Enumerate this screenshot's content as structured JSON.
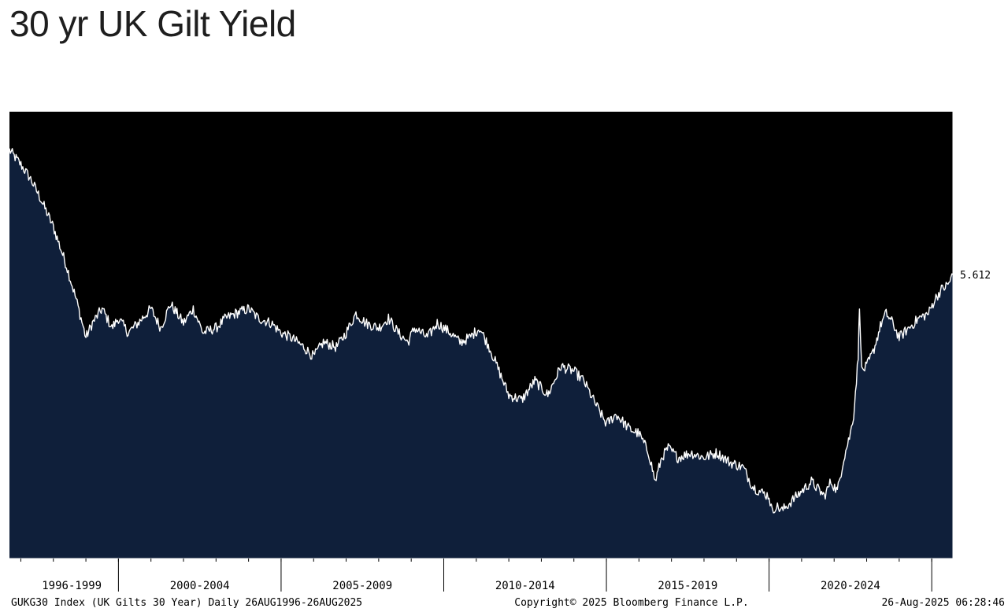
{
  "header": {
    "title": "30 yr UK Gilt Yield"
  },
  "chart_data": {
    "type": "area",
    "title": "30 yr UK Gilt Yield",
    "series_label": "GUKG30 Index (UK Gilts 30 Year)  Daily 26AUG1996-26AUG2025",
    "copyright": "Copyright© 2025 Bloomberg Finance L.P.",
    "timestamp": "26-Aug-2025 06:28:46",
    "x_range": [
      "1996-08-26",
      "2025-08-26"
    ],
    "ylim": [
      -0.3,
      9.0
    ],
    "y_ticks": [
      "0.000",
      "1.000",
      "2.000",
      "3.000",
      "4.000",
      "5.000",
      "6.000",
      "7.000",
      "8.000"
    ],
    "x_periods": [
      "1996-1999",
      "2000-2004",
      "2005-2009",
      "2010-2014",
      "2015-2019",
      "2020-2024"
    ],
    "last_value": "5.612",
    "colors": {
      "background": "#000000",
      "area": "#0f1f3a",
      "line": "#ffffff",
      "axis": "#ffffff"
    },
    "grid": false,
    "x": [
      1996.65,
      1997.0,
      1997.3,
      1997.6,
      1998.0,
      1998.4,
      1998.7,
      1999.0,
      1999.2,
      1999.5,
      1999.8,
      2000.0,
      2000.3,
      2000.6,
      2001.0,
      2001.3,
      2001.6,
      2002.0,
      2002.3,
      2002.6,
      2003.0,
      2003.3,
      2003.6,
      2004.0,
      2004.3,
      2004.7,
      2005.0,
      2005.3,
      2005.7,
      2006.0,
      2006.3,
      2006.7,
      2007.0,
      2007.3,
      2007.6,
      2008.0,
      2008.3,
      2008.6,
      2008.9,
      2009.1,
      2009.5,
      2009.8,
      2010.2,
      2010.5,
      2010.8,
      2011.1,
      2011.4,
      2011.7,
      2012.0,
      2012.4,
      2012.8,
      2013.2,
      2013.6,
      2014.0,
      2014.3,
      2014.6,
      2015.0,
      2015.3,
      2015.7,
      2016.0,
      2016.3,
      2016.5,
      2016.7,
      2016.9,
      2017.2,
      2017.6,
      2018.0,
      2018.4,
      2018.8,
      2019.2,
      2019.5,
      2019.7,
      2020.0,
      2020.1,
      2020.2,
      2020.4,
      2020.7,
      2021.0,
      2021.3,
      2021.7,
      2021.9,
      2022.1,
      2022.3,
      2022.5,
      2022.6,
      2022.74,
      2022.78,
      2022.85,
      2023.0,
      2023.2,
      2023.45,
      2023.6,
      2023.8,
      2024.0,
      2024.3,
      2024.6,
      2024.9,
      2025.1,
      2025.3,
      2025.5,
      2025.65
    ],
    "values": [
      8.2,
      7.9,
      7.6,
      7.2,
      6.6,
      5.8,
      5.1,
      4.3,
      4.6,
      4.9,
      4.5,
      4.7,
      4.4,
      4.6,
      4.9,
      4.5,
      5.0,
      4.6,
      4.9,
      4.4,
      4.5,
      4.7,
      4.8,
      4.9,
      4.7,
      4.6,
      4.4,
      4.3,
      4.1,
      3.9,
      4.2,
      4.1,
      4.4,
      4.8,
      4.6,
      4.5,
      4.7,
      4.4,
      4.2,
      4.5,
      4.3,
      4.6,
      4.4,
      4.2,
      4.3,
      4.5,
      4.1,
      3.6,
      3.1,
      3.0,
      3.4,
      3.1,
      3.7,
      3.6,
      3.4,
      3.0,
      2.5,
      2.7,
      2.4,
      2.3,
      1.9,
      1.3,
      1.8,
      2.0,
      1.8,
      1.9,
      1.8,
      1.9,
      1.7,
      1.6,
      1.2,
      1.1,
      1.0,
      0.65,
      0.8,
      0.7,
      0.9,
      1.1,
      1.3,
      1.0,
      1.3,
      1.1,
      1.8,
      2.3,
      2.7,
      3.9,
      5.0,
      3.6,
      3.7,
      4.0,
      4.6,
      4.8,
      4.6,
      4.3,
      4.5,
      4.7,
      4.8,
      5.1,
      5.3,
      5.4,
      5.612
    ]
  }
}
